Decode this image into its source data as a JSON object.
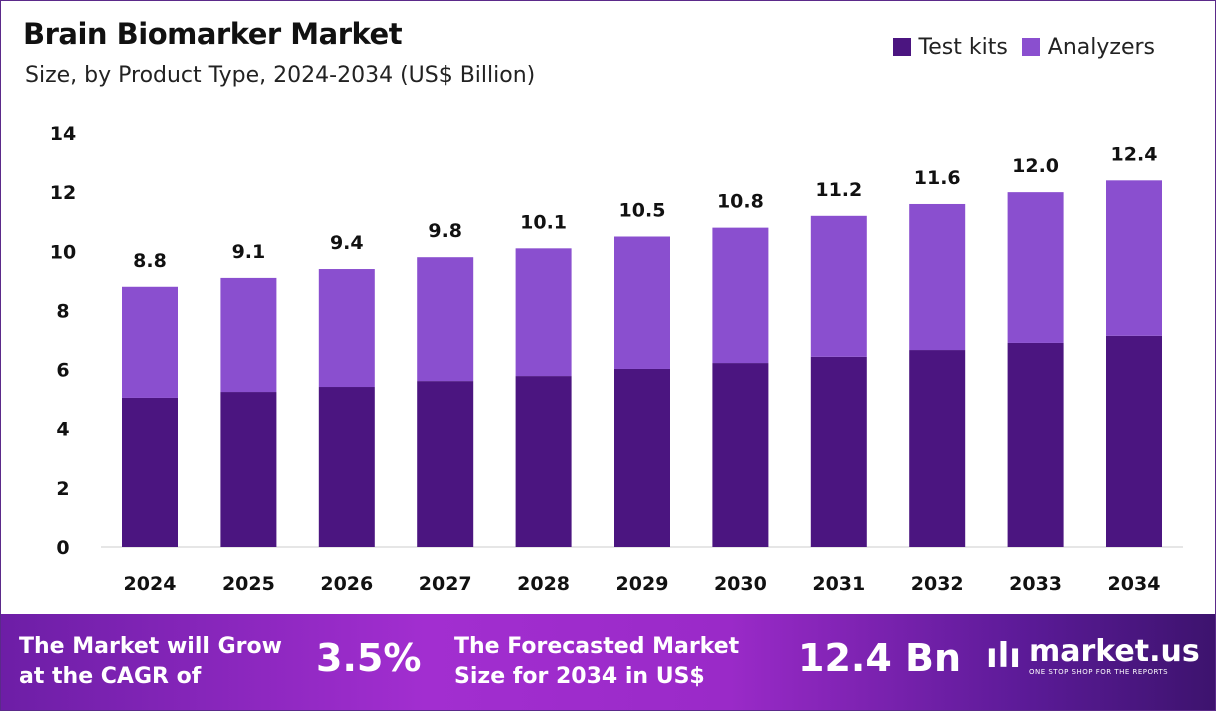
{
  "chart_data": {
    "type": "bar",
    "stacked": true,
    "title": "Brain Biomarker Market",
    "subtitle": "Size, by Product Type, 2024-2034 (US$ Billion)",
    "categories": [
      "2024",
      "2025",
      "2026",
      "2027",
      "2028",
      "2029",
      "2030",
      "2031",
      "2032",
      "2033",
      "2034"
    ],
    "series": [
      {
        "name": "Test kits",
        "color": "#4b1580",
        "values": [
          5.04,
          5.24,
          5.41,
          5.61,
          5.78,
          6.02,
          6.22,
          6.43,
          6.66,
          6.9,
          7.14
        ]
      },
      {
        "name": "Analyzers",
        "color": "#8a4fcf",
        "values": [
          3.76,
          3.86,
          3.99,
          4.19,
          4.32,
          4.48,
          4.58,
          4.77,
          4.94,
          5.1,
          5.26
        ]
      }
    ],
    "totals": [
      "8.8",
      "9.1",
      "9.4",
      "9.8",
      "10.1",
      "10.5",
      "10.8",
      "11.2",
      "11.6",
      "12.0",
      "12.4"
    ],
    "ylim": [
      0,
      14
    ],
    "yticks": [
      "0",
      "2",
      "4",
      "6",
      "8",
      "10",
      "12",
      "14"
    ],
    "grid": false,
    "legend_position": "top-right"
  },
  "footer": {
    "cagr_text_1": "The Market will Grow",
    "cagr_text_2": "at the CAGR of",
    "cagr_value": "3.5%",
    "forecast_text_1": "The Forecasted Market",
    "forecast_text_2": "Size for 2034 in US$",
    "forecast_value": "12.4 Bn",
    "logo_name": "market.us",
    "logo_tagline": "ONE STOP SHOP FOR THE REPORTS"
  }
}
